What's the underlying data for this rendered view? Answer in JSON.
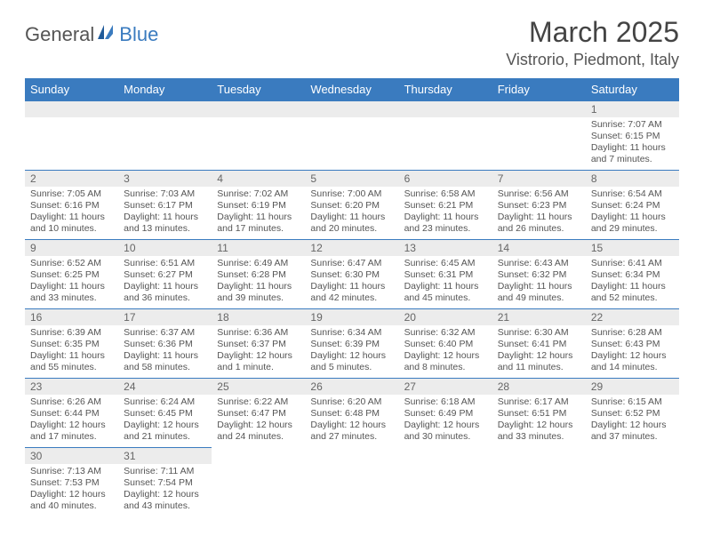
{
  "brand": {
    "part1": "General",
    "part2": "Blue"
  },
  "title": "March 2025",
  "location": "Vistrorio, Piedmont, Italy",
  "weekdays": [
    "Sunday",
    "Monday",
    "Tuesday",
    "Wednesday",
    "Thursday",
    "Friday",
    "Saturday"
  ],
  "colors": {
    "header_bg": "#3a7bbf",
    "header_text": "#ffffff",
    "daynum_bg": "#ececec",
    "border": "#3a7bbf",
    "text": "#555555"
  },
  "weeks": [
    [
      null,
      null,
      null,
      null,
      null,
      null,
      {
        "n": "1",
        "sr": "Sunrise: 7:07 AM",
        "ss": "Sunset: 6:15 PM",
        "dl": "Daylight: 11 hours and 7 minutes."
      }
    ],
    [
      {
        "n": "2",
        "sr": "Sunrise: 7:05 AM",
        "ss": "Sunset: 6:16 PM",
        "dl": "Daylight: 11 hours and 10 minutes."
      },
      {
        "n": "3",
        "sr": "Sunrise: 7:03 AM",
        "ss": "Sunset: 6:17 PM",
        "dl": "Daylight: 11 hours and 13 minutes."
      },
      {
        "n": "4",
        "sr": "Sunrise: 7:02 AM",
        "ss": "Sunset: 6:19 PM",
        "dl": "Daylight: 11 hours and 17 minutes."
      },
      {
        "n": "5",
        "sr": "Sunrise: 7:00 AM",
        "ss": "Sunset: 6:20 PM",
        "dl": "Daylight: 11 hours and 20 minutes."
      },
      {
        "n": "6",
        "sr": "Sunrise: 6:58 AM",
        "ss": "Sunset: 6:21 PM",
        "dl": "Daylight: 11 hours and 23 minutes."
      },
      {
        "n": "7",
        "sr": "Sunrise: 6:56 AM",
        "ss": "Sunset: 6:23 PM",
        "dl": "Daylight: 11 hours and 26 minutes."
      },
      {
        "n": "8",
        "sr": "Sunrise: 6:54 AM",
        "ss": "Sunset: 6:24 PM",
        "dl": "Daylight: 11 hours and 29 minutes."
      }
    ],
    [
      {
        "n": "9",
        "sr": "Sunrise: 6:52 AM",
        "ss": "Sunset: 6:25 PM",
        "dl": "Daylight: 11 hours and 33 minutes."
      },
      {
        "n": "10",
        "sr": "Sunrise: 6:51 AM",
        "ss": "Sunset: 6:27 PM",
        "dl": "Daylight: 11 hours and 36 minutes."
      },
      {
        "n": "11",
        "sr": "Sunrise: 6:49 AM",
        "ss": "Sunset: 6:28 PM",
        "dl": "Daylight: 11 hours and 39 minutes."
      },
      {
        "n": "12",
        "sr": "Sunrise: 6:47 AM",
        "ss": "Sunset: 6:30 PM",
        "dl": "Daylight: 11 hours and 42 minutes."
      },
      {
        "n": "13",
        "sr": "Sunrise: 6:45 AM",
        "ss": "Sunset: 6:31 PM",
        "dl": "Daylight: 11 hours and 45 minutes."
      },
      {
        "n": "14",
        "sr": "Sunrise: 6:43 AM",
        "ss": "Sunset: 6:32 PM",
        "dl": "Daylight: 11 hours and 49 minutes."
      },
      {
        "n": "15",
        "sr": "Sunrise: 6:41 AM",
        "ss": "Sunset: 6:34 PM",
        "dl": "Daylight: 11 hours and 52 minutes."
      }
    ],
    [
      {
        "n": "16",
        "sr": "Sunrise: 6:39 AM",
        "ss": "Sunset: 6:35 PM",
        "dl": "Daylight: 11 hours and 55 minutes."
      },
      {
        "n": "17",
        "sr": "Sunrise: 6:37 AM",
        "ss": "Sunset: 6:36 PM",
        "dl": "Daylight: 11 hours and 58 minutes."
      },
      {
        "n": "18",
        "sr": "Sunrise: 6:36 AM",
        "ss": "Sunset: 6:37 PM",
        "dl": "Daylight: 12 hours and 1 minute."
      },
      {
        "n": "19",
        "sr": "Sunrise: 6:34 AM",
        "ss": "Sunset: 6:39 PM",
        "dl": "Daylight: 12 hours and 5 minutes."
      },
      {
        "n": "20",
        "sr": "Sunrise: 6:32 AM",
        "ss": "Sunset: 6:40 PM",
        "dl": "Daylight: 12 hours and 8 minutes."
      },
      {
        "n": "21",
        "sr": "Sunrise: 6:30 AM",
        "ss": "Sunset: 6:41 PM",
        "dl": "Daylight: 12 hours and 11 minutes."
      },
      {
        "n": "22",
        "sr": "Sunrise: 6:28 AM",
        "ss": "Sunset: 6:43 PM",
        "dl": "Daylight: 12 hours and 14 minutes."
      }
    ],
    [
      {
        "n": "23",
        "sr": "Sunrise: 6:26 AM",
        "ss": "Sunset: 6:44 PM",
        "dl": "Daylight: 12 hours and 17 minutes."
      },
      {
        "n": "24",
        "sr": "Sunrise: 6:24 AM",
        "ss": "Sunset: 6:45 PM",
        "dl": "Daylight: 12 hours and 21 minutes."
      },
      {
        "n": "25",
        "sr": "Sunrise: 6:22 AM",
        "ss": "Sunset: 6:47 PM",
        "dl": "Daylight: 12 hours and 24 minutes."
      },
      {
        "n": "26",
        "sr": "Sunrise: 6:20 AM",
        "ss": "Sunset: 6:48 PM",
        "dl": "Daylight: 12 hours and 27 minutes."
      },
      {
        "n": "27",
        "sr": "Sunrise: 6:18 AM",
        "ss": "Sunset: 6:49 PM",
        "dl": "Daylight: 12 hours and 30 minutes."
      },
      {
        "n": "28",
        "sr": "Sunrise: 6:17 AM",
        "ss": "Sunset: 6:51 PM",
        "dl": "Daylight: 12 hours and 33 minutes."
      },
      {
        "n": "29",
        "sr": "Sunrise: 6:15 AM",
        "ss": "Sunset: 6:52 PM",
        "dl": "Daylight: 12 hours and 37 minutes."
      }
    ],
    [
      {
        "n": "30",
        "sr": "Sunrise: 7:13 AM",
        "ss": "Sunset: 7:53 PM",
        "dl": "Daylight: 12 hours and 40 minutes."
      },
      {
        "n": "31",
        "sr": "Sunrise: 7:11 AM",
        "ss": "Sunset: 7:54 PM",
        "dl": "Daylight: 12 hours and 43 minutes."
      },
      null,
      null,
      null,
      null,
      null
    ]
  ]
}
